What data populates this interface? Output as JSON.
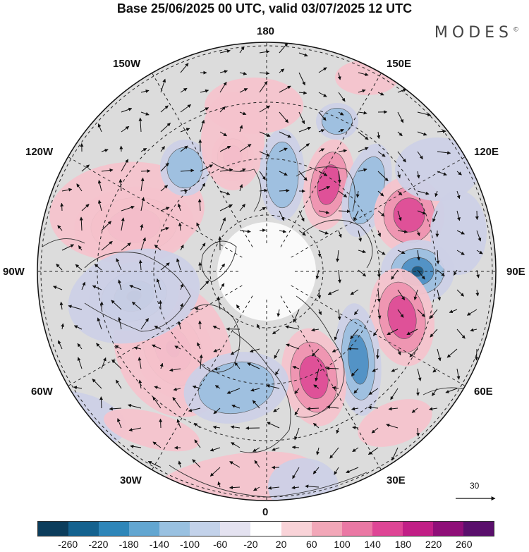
{
  "title": "Base 25/06/2025 00 UTC, valid 03/07/2025 12 UTC",
  "brand": "MODES",
  "brand_mark": "©",
  "longitude_labels": {
    "n180": "180",
    "e150": "150E",
    "e120": "120E",
    "e90": "90E",
    "e60": "60E",
    "e30": "30E",
    "s0": "0",
    "w30": "30W",
    "w60": "60W",
    "w90": "90W",
    "w120": "120W",
    "w150": "150W"
  },
  "reference_vector": {
    "label": "30"
  },
  "colorbar": {
    "colors": [
      "#0c3d5c",
      "#14628f",
      "#2e86b9",
      "#62a6d1",
      "#99c1e1",
      "#c3d2ea",
      "#e4e2f0",
      "#ffffff",
      "#f9d3d8",
      "#f2a7b8",
      "#ea78a4",
      "#de4595",
      "#c11f86",
      "#8f0f78",
      "#5a0f6c"
    ],
    "ticks": [
      "-260",
      "-220",
      "-180",
      "-140",
      "-100",
      "-60",
      "-20",
      "20",
      "60",
      "100",
      "140",
      "180",
      "220",
      "260"
    ]
  },
  "anomaly_colors": {
    "background": "#dcdcdc",
    "positive_light": "#f4c3cc",
    "positive_mid": "#ee94b0",
    "positive_strong": "#dd4d97",
    "positive_core": "#b01d83",
    "negative_light": "#ccd0e6",
    "negative_mid": "#9cbfdf",
    "negative_strong": "#4f90c4",
    "negative_core": "#1a5a86",
    "coastline": "#333333"
  }
}
